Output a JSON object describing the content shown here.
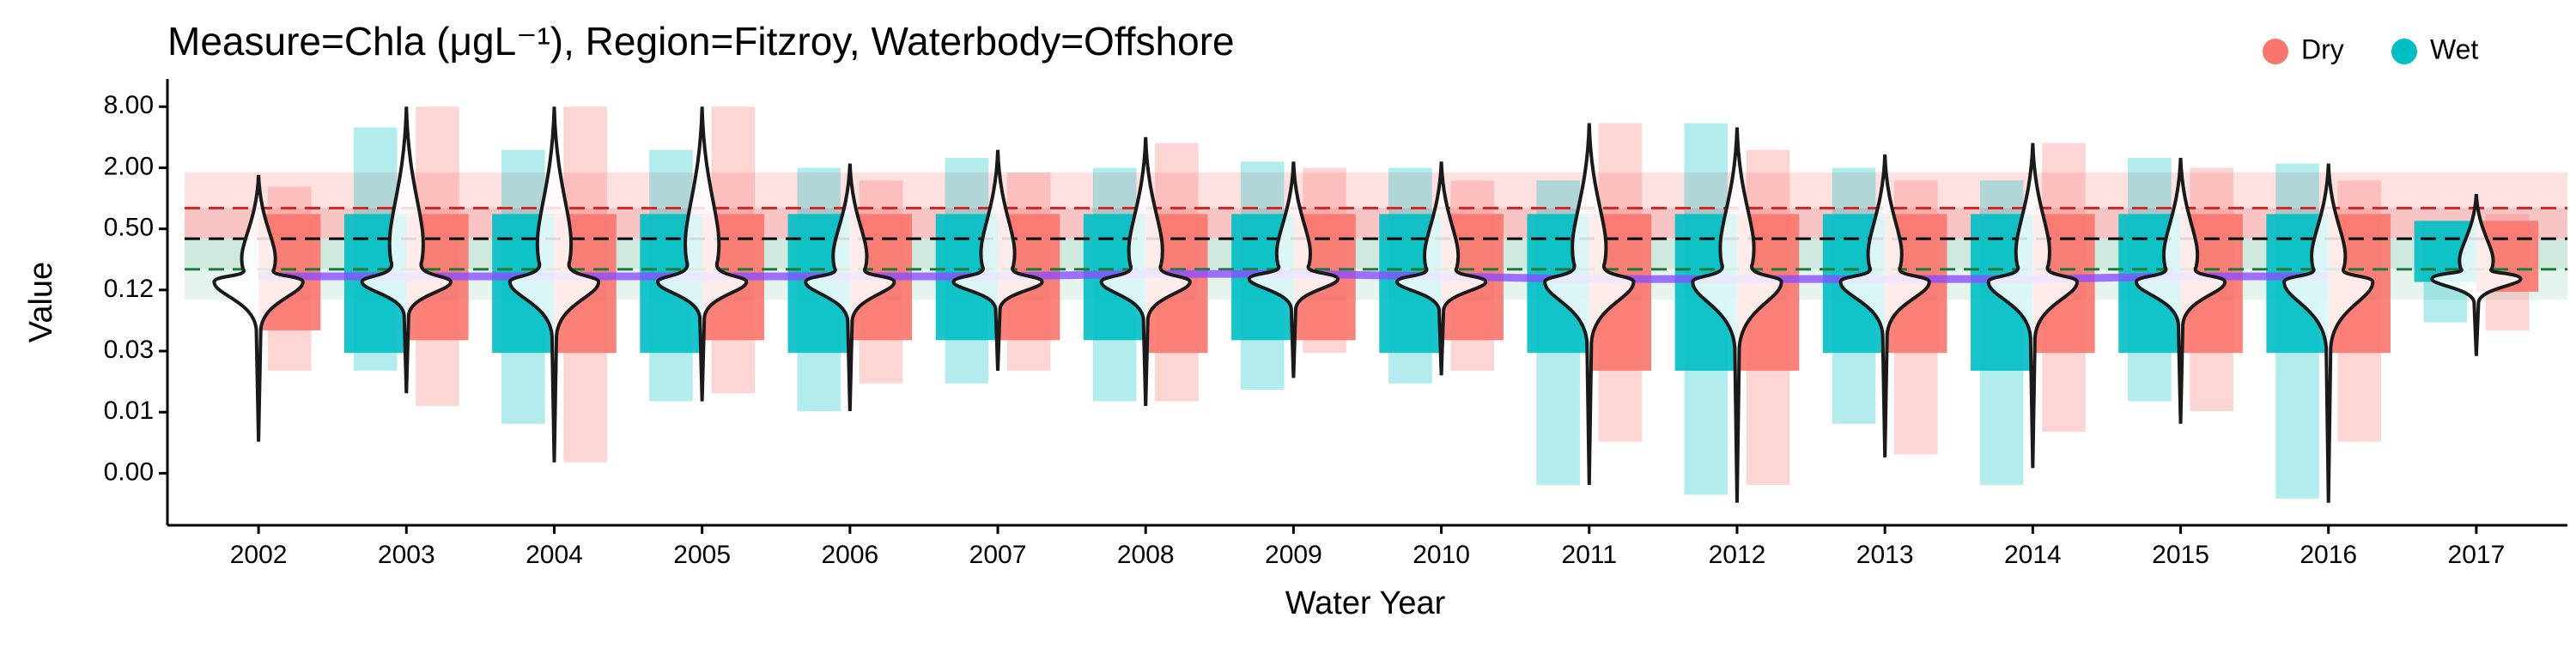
{
  "chart_data": {
    "type": "violin",
    "title": "Measure=Chla (μgL⁻¹), Region=Fitzroy, Waterbody=Offshore",
    "x_label": "Water Year",
    "y_label": "Value",
    "log_scale": true,
    "ylim": [
      0.0006,
      15
    ],
    "yticks": [
      {
        "value": 8,
        "label": "8.00"
      },
      {
        "value": 2,
        "label": "2.00"
      },
      {
        "value": 0.5,
        "label": "0.50"
      },
      {
        "value": 0.125,
        "label": "0.12"
      },
      {
        "value": 0.03125,
        "label": "0.03"
      },
      {
        "value": 0.0078125,
        "label": "0.01"
      },
      {
        "value": 0.001953125,
        "label": "0.00"
      }
    ],
    "legend": "top-right",
    "categories": [
      "2002",
      "2003",
      "2004",
      "2005",
      "2006",
      "2007",
      "2008",
      "2009",
      "2010",
      "2011",
      "2012",
      "2013",
      "2014",
      "2015",
      "2016",
      "2017"
    ],
    "bands": [
      {
        "from": 1.8,
        "to": 0.8,
        "color": "#fde0e0"
      },
      {
        "from": 0.8,
        "to": 0.4,
        "color": "#f9c4c4"
      },
      {
        "from": 0.4,
        "to": 0.2,
        "color": "#cfe9df"
      },
      {
        "from": 0.2,
        "to": 0.1,
        "color": "#e6f4ee"
      }
    ],
    "reference_lines": [
      {
        "value": 0.8,
        "color": "#d62728"
      },
      {
        "value": 0.4,
        "color": "#000000"
      },
      {
        "value": 0.2,
        "color": "#1f7a3a"
      }
    ],
    "series": [
      {
        "name": "Dry",
        "color": "#F8766D",
        "low": [
          0.05,
          0.04,
          0.03,
          0.04,
          0.04,
          0.04,
          0.03,
          0.04,
          0.04,
          0.02,
          0.02,
          0.03,
          0.03,
          0.03,
          0.03,
          0.12
        ],
        "high": [
          0.7,
          0.7,
          0.7,
          0.7,
          0.7,
          0.7,
          0.7,
          0.7,
          0.7,
          0.7,
          0.7,
          0.7,
          0.7,
          0.7,
          0.7,
          0.6
        ],
        "min": [
          0.02,
          0.009,
          0.0025,
          0.012,
          0.015,
          0.02,
          0.01,
          0.03,
          0.02,
          0.004,
          0.0015,
          0.003,
          0.005,
          0.008,
          0.004,
          0.05
        ],
        "max": [
          1.3,
          8,
          8,
          8,
          1.5,
          1.8,
          3.5,
          2,
          1.5,
          5.5,
          3,
          1.5,
          3.5,
          2,
          1.5,
          0.7
        ]
      },
      {
        "name": "Wet",
        "color": "#00BFC4",
        "low": [
          null,
          0.03,
          0.03,
          0.03,
          0.03,
          0.04,
          0.04,
          0.04,
          0.03,
          0.03,
          0.02,
          0.03,
          0.02,
          0.03,
          0.03,
          0.15
        ],
        "high": [
          null,
          0.7,
          0.7,
          0.7,
          0.7,
          0.7,
          0.7,
          0.7,
          0.7,
          0.7,
          0.7,
          0.7,
          0.7,
          0.7,
          0.7,
          0.6
        ],
        "min": [
          null,
          0.02,
          0.006,
          0.01,
          0.008,
          0.015,
          0.01,
          0.013,
          0.015,
          0.0015,
          0.0012,
          0.006,
          0.0015,
          0.01,
          0.0011,
          0.06
        ],
        "max": [
          null,
          5,
          3,
          3,
          2,
          2.5,
          2,
          2.3,
          2,
          1.5,
          5.5,
          2,
          1.5,
          2.5,
          2.2,
          0.6
        ]
      }
    ],
    "violins": {
      "min": [
        0.004,
        0.012,
        0.0025,
        0.01,
        0.008,
        0.02,
        0.009,
        0.017,
        0.018,
        0.0015,
        0.001,
        0.0028,
        0.0022,
        0.006,
        0.001,
        0.028
      ],
      "median": [
        0.15,
        0.15,
        0.15,
        0.15,
        0.15,
        0.15,
        0.15,
        0.16,
        0.15,
        0.15,
        0.15,
        0.15,
        0.15,
        0.15,
        0.15,
        0.16
      ],
      "max": [
        1.7,
        8,
        8,
        8,
        2.2,
        3,
        4,
        2.3,
        2.3,
        5.5,
        5,
        2.7,
        3.5,
        2.5,
        2.2,
        1.1
      ]
    },
    "trend": {
      "color": "#8a4dff",
      "values": [
        0.17,
        0.17,
        0.17,
        0.17,
        0.17,
        0.17,
        0.18,
        0.18,
        0.17,
        0.16,
        0.16,
        0.16,
        0.16,
        0.17,
        0.17,
        null
      ]
    }
  }
}
